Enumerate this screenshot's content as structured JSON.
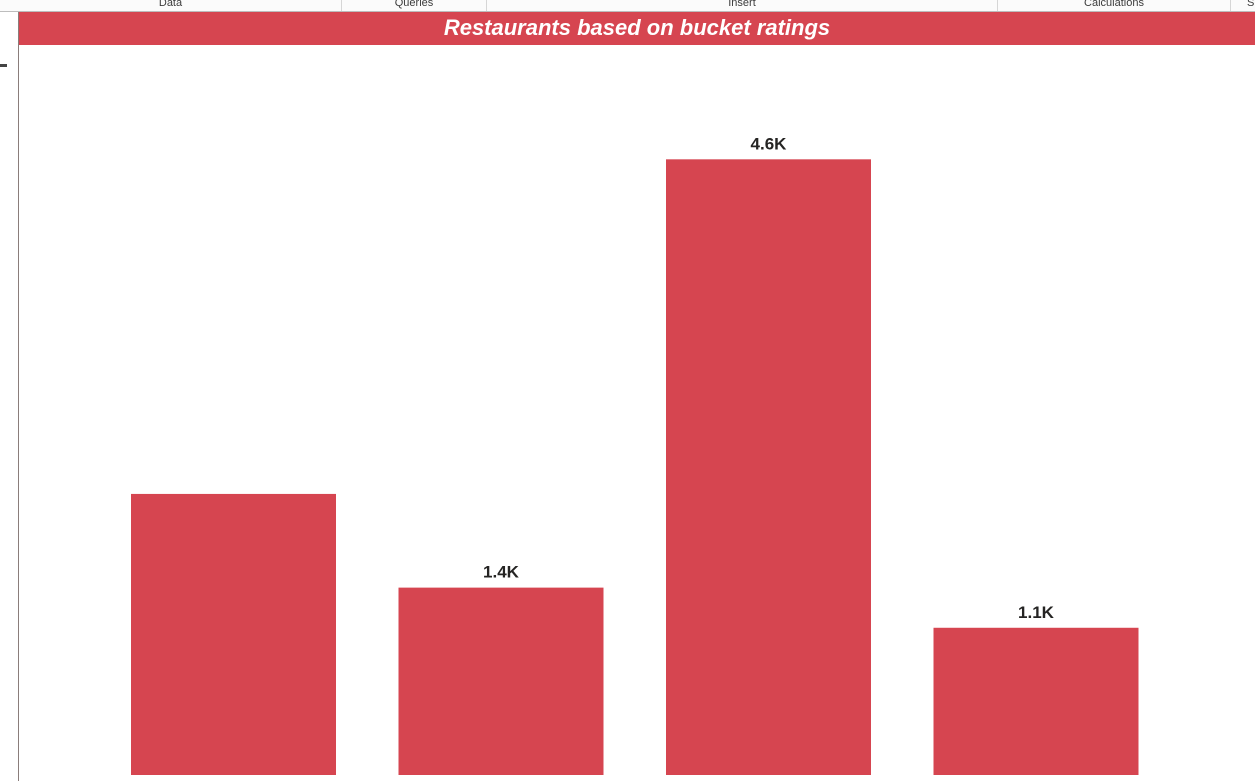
{
  "ribbon": {
    "groups": [
      "Data",
      "Queries",
      "Insert",
      "Calculations",
      "S"
    ]
  },
  "colors": {
    "accent": "#d64550",
    "title_text": "#ffffff",
    "data_label": "#252423"
  },
  "chart_data": {
    "type": "bar",
    "title": "Restaurants based on bucket ratings",
    "categories": [
      "",
      "",
      "",
      ""
    ],
    "values": [
      2100,
      1400,
      4600,
      1100
    ],
    "data_labels": [
      "",
      "1.4K",
      "4.6K",
      "1.1K"
    ],
    "ylim": [
      0,
      5230
    ],
    "xlabel": "",
    "ylabel": "",
    "grid": false
  }
}
